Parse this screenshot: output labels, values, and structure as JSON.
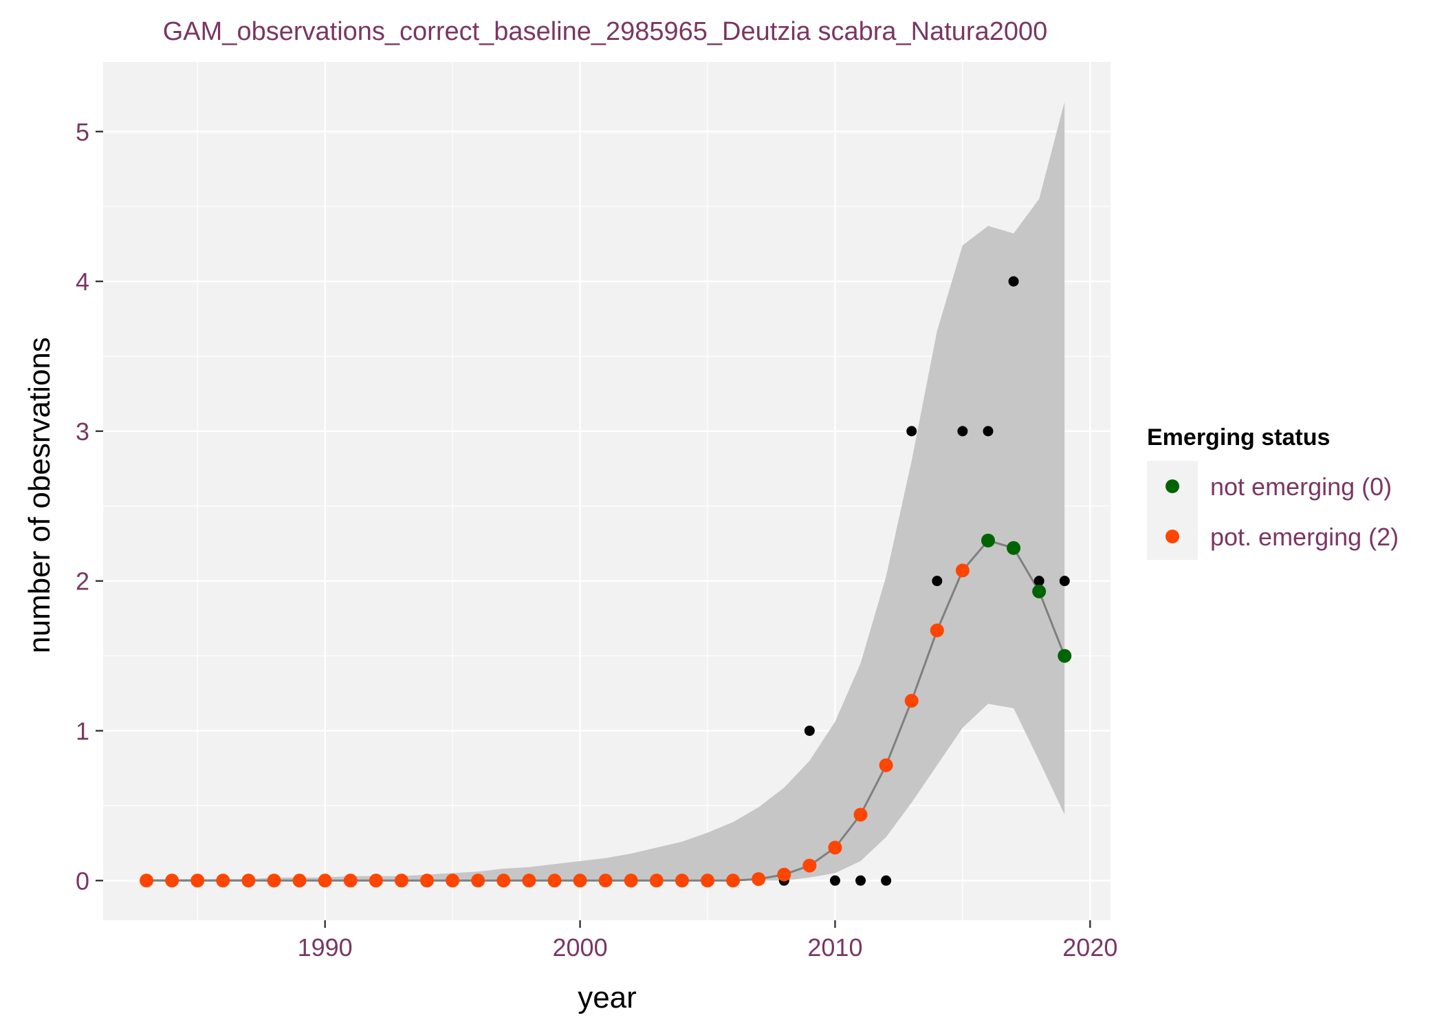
{
  "chart_data": {
    "type": "scatter",
    "title": "GAM_observations_correct_baseline_2985965_Deutzia scabra_Natura2000",
    "xlabel": "year",
    "ylabel": "number of obesrvations",
    "xlim": [
      1981.3,
      2020.8
    ],
    "ylim": [
      -0.265,
      5.465
    ],
    "x_ticks": [
      1990,
      2000,
      2010,
      2020
    ],
    "x_tick_labels": [
      "1990",
      "2000",
      "2010",
      "2020"
    ],
    "y_ticks": [
      0,
      1,
      2,
      3,
      4,
      5
    ],
    "y_tick_labels": [
      "0",
      "1",
      "2",
      "3",
      "4",
      "5"
    ],
    "grid": true,
    "legend": {
      "title": "Emerging status",
      "position": "right",
      "entries": [
        {
          "label": "not emerging (0)",
          "color": "#006400"
        },
        {
          "label": "pot. emerging (2)",
          "color": "#FF4500"
        }
      ]
    },
    "colors": {
      "observed": "#000000",
      "fit_line": "#7f7f7f",
      "ci_ribbon": "#c6c6c6",
      "panel_bg": "#f2f2f2",
      "grid": "#ffffff",
      "text": "#7a3663"
    },
    "observed": {
      "x": [
        1983,
        1984,
        1985,
        1986,
        1987,
        1988,
        1989,
        1990,
        1991,
        1992,
        1993,
        1994,
        1995,
        1996,
        1997,
        1998,
        1999,
        2000,
        2001,
        2002,
        2003,
        2004,
        2005,
        2006,
        2007,
        2008,
        2009,
        2010,
        2011,
        2012,
        2013,
        2014,
        2015,
        2016,
        2017,
        2018,
        2019
      ],
      "y": [
        0,
        0,
        0,
        0,
        0,
        0,
        0,
        0,
        0,
        0,
        0,
        0,
        0,
        0,
        0,
        0,
        0,
        0,
        0,
        0,
        0,
        0,
        0,
        0,
        0,
        0,
        1,
        0,
        0,
        0,
        3,
        2,
        3,
        3,
        4,
        2,
        2
      ]
    },
    "fitted": {
      "x": [
        1983,
        1984,
        1985,
        1986,
        1987,
        1988,
        1989,
        1990,
        1991,
        1992,
        1993,
        1994,
        1995,
        1996,
        1997,
        1998,
        1999,
        2000,
        2001,
        2002,
        2003,
        2004,
        2005,
        2006,
        2007,
        2008,
        2009,
        2010,
        2011,
        2012,
        2013,
        2014,
        2015,
        2016,
        2017,
        2018,
        2019
      ],
      "y": [
        0,
        0,
        0,
        0,
        0,
        0,
        0,
        0,
        0,
        0,
        0,
        0,
        0,
        0,
        0,
        0,
        0,
        0,
        0,
        0,
        0,
        0,
        0,
        0,
        0.01,
        0.04,
        0.1,
        0.22,
        0.44,
        0.77,
        1.2,
        1.67,
        2.07,
        2.27,
        2.22,
        1.93,
        1.5
      ],
      "status": [
        2,
        2,
        2,
        2,
        2,
        2,
        2,
        2,
        2,
        2,
        2,
        2,
        2,
        2,
        2,
        2,
        2,
        2,
        2,
        2,
        2,
        2,
        2,
        2,
        2,
        2,
        2,
        2,
        2,
        2,
        2,
        2,
        2,
        0,
        0,
        0,
        0
      ]
    },
    "ci": {
      "x": [
        1983,
        1984,
        1985,
        1986,
        1987,
        1988,
        1989,
        1990,
        1991,
        1992,
        1993,
        1994,
        1995,
        1996,
        1997,
        1998,
        1999,
        2000,
        2001,
        2002,
        2003,
        2004,
        2005,
        2006,
        2007,
        2008,
        2009,
        2010,
        2011,
        2012,
        2013,
        2014,
        2015,
        2016,
        2017,
        2018,
        2019
      ],
      "lower": [
        0,
        0,
        0,
        0,
        0,
        0,
        0,
        0,
        0,
        0,
        0,
        0,
        0,
        0,
        0,
        0,
        0,
        0,
        0,
        0,
        0,
        0,
        0,
        0,
        0,
        0,
        0.02,
        0.05,
        0.13,
        0.29,
        0.52,
        0.77,
        1.02,
        1.18,
        1.15,
        0.8,
        0.44
      ],
      "upper": [
        0.01,
        0.01,
        0.01,
        0.01,
        0.01,
        0.02,
        0.02,
        0.02,
        0.03,
        0.03,
        0.03,
        0.04,
        0.05,
        0.06,
        0.08,
        0.09,
        0.11,
        0.13,
        0.15,
        0.18,
        0.22,
        0.26,
        0.32,
        0.39,
        0.49,
        0.62,
        0.8,
        1.06,
        1.45,
        2.03,
        2.8,
        3.67,
        4.24,
        4.37,
        4.32,
        4.55,
        5.2
      ]
    }
  }
}
